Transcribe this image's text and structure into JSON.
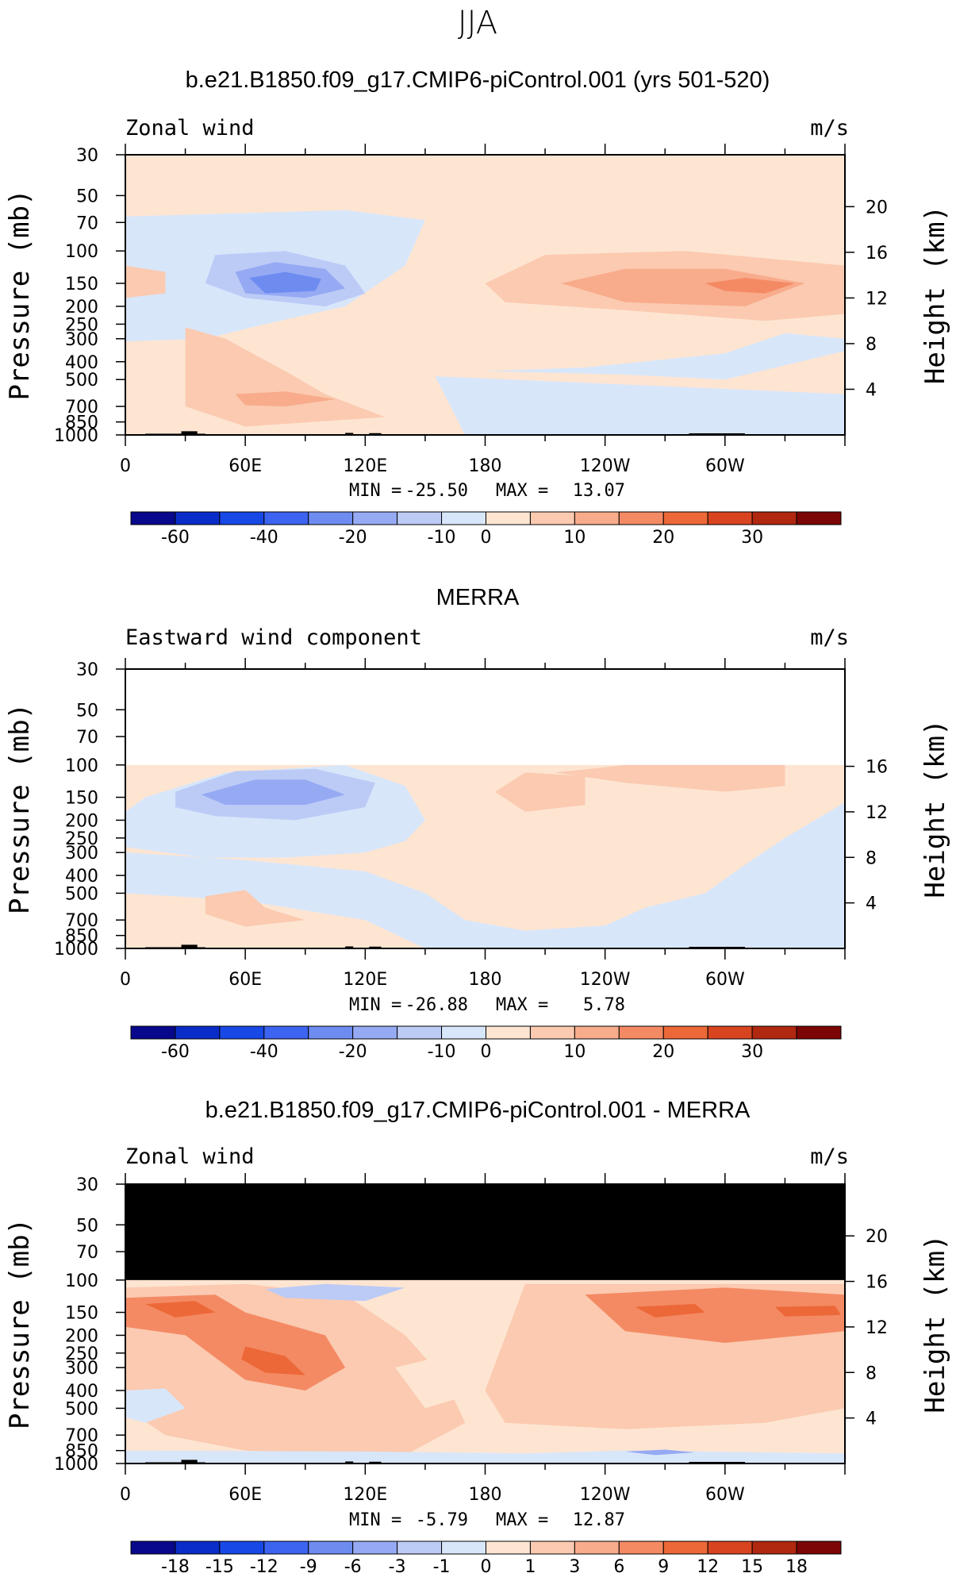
{
  "figure": {
    "title": "JJA"
  },
  "chart_data": [
    {
      "type": "heatmap",
      "title": "b.e21.B1850.f09_g17.CMIP6-piControl.001 (yrs 501-520)",
      "left_label": "Zonal wind",
      "right_label": "m/s",
      "ylabel": "Pressure (mb)",
      "ylabel_right": "Height (km)",
      "x_ticks": [
        "0",
        "60E",
        "120E",
        "180",
        "120W",
        "60W"
      ],
      "y_ticks": [
        "30",
        "50",
        "70",
        "100",
        "150",
        "200",
        "250",
        "300",
        "400",
        "500",
        "700",
        "850",
        "1000"
      ],
      "height_ticks": [
        "20",
        "16",
        "12",
        "8",
        "4"
      ],
      "stats": {
        "min_label": "MIN =",
        "min": "-25.50",
        "max_label": "MAX =",
        "max": "13.07"
      },
      "colorbar_labels": [
        "-60",
        "-40",
        "-20",
        "-10",
        "0",
        "10",
        "20",
        "30"
      ],
      "ylim": [
        1000,
        30
      ],
      "xlim": [
        0,
        360
      ]
    },
    {
      "type": "heatmap",
      "title": "MERRA",
      "left_label": "Eastward wind component",
      "right_label": "m/s",
      "ylabel": "Pressure (mb)",
      "ylabel_right": "Height (km)",
      "x_ticks": [
        "0",
        "60E",
        "120E",
        "180",
        "120W",
        "60W"
      ],
      "y_ticks": [
        "30",
        "50",
        "70",
        "100",
        "150",
        "200",
        "250",
        "300",
        "400",
        "500",
        "700",
        "850",
        "1000"
      ],
      "height_ticks": [
        "16",
        "12",
        "8",
        "4"
      ],
      "stats": {
        "min_label": "MIN =",
        "min": "-26.88",
        "max_label": "MAX =",
        "max": "5.78"
      },
      "colorbar_labels": [
        "-60",
        "-40",
        "-20",
        "-10",
        "0",
        "10",
        "20",
        "30"
      ],
      "ylim": [
        1000,
        30
      ],
      "xlim": [
        0,
        360
      ]
    },
    {
      "type": "heatmap",
      "title": "b.e21.B1850.f09_g17.CMIP6-piControl.001 - MERRA",
      "left_label": "Zonal wind",
      "right_label": "m/s",
      "ylabel": "Pressure (mb)",
      "ylabel_right": "Height (km)",
      "x_ticks": [
        "0",
        "60E",
        "120E",
        "180",
        "120W",
        "60W"
      ],
      "y_ticks": [
        "30",
        "50",
        "70",
        "100",
        "150",
        "200",
        "250",
        "300",
        "400",
        "500",
        "700",
        "850",
        "1000"
      ],
      "height_ticks": [
        "20",
        "16",
        "12",
        "8",
        "4"
      ],
      "stats": {
        "min_label": "MIN =",
        "min": "-5.79",
        "max_label": "MAX =",
        "max": "12.87"
      },
      "colorbar_labels": [
        "-18",
        "-15",
        "-12",
        "-9",
        "-6",
        "-3",
        "-1",
        "0",
        "1",
        "3",
        "6",
        "9",
        "12",
        "15",
        "18"
      ],
      "ylim": [
        1000,
        30
      ],
      "xlim": [
        0,
        360
      ]
    }
  ],
  "colors": {
    "colorbar": [
      "#08088c",
      "#0a2cc8",
      "#1848e6",
      "#3c64f0",
      "#6e8cf0",
      "#96aaf4",
      "#bccbf6",
      "#d8e6fa",
      "#fde5d2",
      "#fbcab0",
      "#f8ac8c",
      "#f48a64",
      "#ec6838",
      "#d84420",
      "#b02810",
      "#7c0606"
    ],
    "no_data": "#000000",
    "terrain": "#000000"
  }
}
